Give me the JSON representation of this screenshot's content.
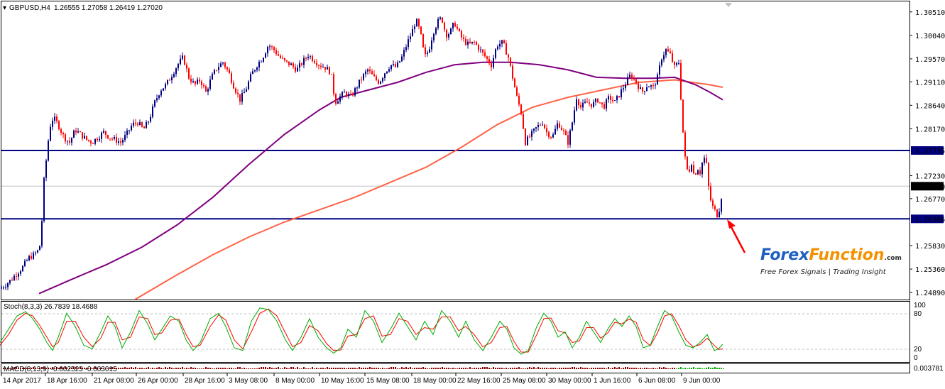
{
  "header": {
    "symbol": "GBPUSD,H4",
    "values": "1.26555 1.27058 1.26419 1.27020"
  },
  "indicators": {
    "stoch_label": "Stoch(8,3,3) 26.7839 18.4688",
    "macd_label": "MACD(8,13,9) -0.002523 -0.003015",
    "macd_axis_label": "0.003781",
    "stoch_levels": [
      "100",
      "80",
      "20",
      "0"
    ]
  },
  "watermark": {
    "brand_first": "Forex",
    "brand_second": "Function",
    "domain": ".com",
    "tagline": "Free Forex Signals | Trading Insight"
  },
  "colors": {
    "bg": "#ffffff",
    "bull": "#000080",
    "bear": "#ff0000",
    "ma_fast": "#800080",
    "ma_slow": "#ff6347",
    "hline": "#000080",
    "arrow": "#ff0000",
    "stoch_main": "#00aa00",
    "stoch_signal": "#ff0000",
    "brand_blue": "#1f5fbf",
    "brand_orange": "#f39200"
  },
  "chart_data": {
    "type": "candlestick",
    "ylim": [
      1.2475,
      1.3072
    ],
    "y_ticks": [
      "1.30510",
      "1.30040",
      "1.29570",
      "1.29110",
      "1.28640",
      "1.28170",
      "1.27230",
      "1.26770",
      "1.25830",
      "1.25360",
      "1.24890"
    ],
    "x_ticks": [
      "14 Apr 2017",
      "18 Apr 16:00",
      "21 Apr 08:00",
      "26 Apr 00:00",
      "28 Apr 16:00",
      "3 May 08:00",
      "8 May 00:00",
      "10 May 16:00",
      "15 May 08:00",
      "18 May 00:00",
      "22 May 16:00",
      "25 May 08:00",
      "30 May 00:00",
      "1 Jun 16:00",
      "6 Jun 08:00",
      "9 Jun 00:00"
    ],
    "price_boxes": [
      "1.27735",
      "1.27020",
      "1.26366"
    ],
    "horizontal_lines": [
      1.27735,
      1.26366
    ],
    "current_price": 1.2702,
    "close_path": [
      [
        0,
        1.2497
      ],
      [
        8,
        1.2505
      ],
      [
        16,
        1.2515
      ],
      [
        24,
        1.2528
      ],
      [
        32,
        1.254
      ],
      [
        40,
        1.2558
      ],
      [
        48,
        1.2565
      ],
      [
        55,
        1.2575
      ],
      [
        58,
        1.26
      ],
      [
        61,
        1.27
      ],
      [
        64,
        1.274
      ],
      [
        67,
        1.278
      ],
      [
        70,
        1.282
      ],
      [
        75,
        1.284
      ],
      [
        82,
        1.2825
      ],
      [
        90,
        1.28
      ],
      [
        98,
        1.279
      ],
      [
        106,
        1.2815
      ],
      [
        114,
        1.2805
      ],
      [
        122,
        1.2795
      ],
      [
        130,
        1.279
      ],
      [
        138,
        1.28
      ],
      [
        146,
        1.281
      ],
      [
        154,
        1.28
      ],
      [
        162,
        1.2795
      ],
      [
        170,
        1.279
      ],
      [
        178,
        1.2805
      ],
      [
        186,
        1.2825
      ],
      [
        194,
        1.283
      ],
      [
        202,
        1.2815
      ],
      [
        210,
        1.2835
      ],
      [
        218,
        1.287
      ],
      [
        226,
        1.2895
      ],
      [
        234,
        1.2905
      ],
      [
        242,
        1.2925
      ],
      [
        250,
        1.2945
      ],
      [
        258,
        1.296
      ],
      [
        266,
        1.292
      ],
      [
        274,
        1.2905
      ],
      [
        282,
        1.2915
      ],
      [
        290,
        1.289
      ],
      [
        298,
        1.292
      ],
      [
        306,
        1.294
      ],
      [
        314,
        1.295
      ],
      [
        322,
        1.293
      ],
      [
        330,
        1.29
      ],
      [
        338,
        1.2875
      ],
      [
        346,
        1.2895
      ],
      [
        354,
        1.2925
      ],
      [
        362,
        1.2945
      ],
      [
        370,
        1.296
      ],
      [
        378,
        1.2985
      ],
      [
        386,
        1.2975
      ],
      [
        394,
        1.296
      ],
      [
        402,
        1.295
      ],
      [
        410,
        1.2945
      ],
      [
        418,
        1.2935
      ],
      [
        426,
        1.295
      ],
      [
        434,
        1.2965
      ],
      [
        442,
        1.2955
      ],
      [
        450,
        1.2945
      ],
      [
        458,
        1.294
      ],
      [
        466,
        1.293
      ],
      [
        472,
        1.287
      ],
      [
        478,
        1.288
      ],
      [
        486,
        1.289
      ],
      [
        494,
        1.288
      ],
      [
        502,
        1.29
      ],
      [
        510,
        1.292
      ],
      [
        518,
        1.2935
      ],
      [
        526,
        1.292
      ],
      [
        534,
        1.291
      ],
      [
        542,
        1.293
      ],
      [
        550,
        1.2945
      ],
      [
        558,
        1.294
      ],
      [
        566,
        1.296
      ],
      [
        574,
        1.299
      ],
      [
        580,
        1.301
      ],
      [
        586,
        1.3035
      ],
      [
        592,
        1.301
      ],
      [
        598,
        1.296
      ],
      [
        604,
        1.2975
      ],
      [
        610,
        1.301
      ],
      [
        616,
        1.303
      ],
      [
        622,
        1.304
      ],
      [
        628,
        1.3005
      ],
      [
        634,
        1.301
      ],
      [
        640,
        1.303
      ],
      [
        646,
        1.301
      ],
      [
        652,
        1.2995
      ],
      [
        660,
        1.2985
      ],
      [
        668,
        1.299
      ],
      [
        676,
        1.2975
      ],
      [
        684,
        1.296
      ],
      [
        692,
        1.2945
      ],
      [
        700,
        1.2985
      ],
      [
        708,
        1.299
      ],
      [
        716,
        1.296
      ],
      [
        722,
        1.292
      ],
      [
        728,
        1.288
      ],
      [
        734,
        1.285
      ],
      [
        740,
        1.279
      ],
      [
        748,
        1.2805
      ],
      [
        756,
        1.282
      ],
      [
        764,
        1.283
      ],
      [
        770,
        1.281
      ],
      [
        778,
        1.28
      ],
      [
        786,
        1.283
      ],
      [
        794,
        1.281
      ],
      [
        800,
        1.279
      ],
      [
        806,
        1.283
      ],
      [
        812,
        1.288
      ],
      [
        818,
        1.286
      ],
      [
        826,
        1.287
      ],
      [
        834,
        1.2865
      ],
      [
        842,
        1.2875
      ],
      [
        850,
        1.286
      ],
      [
        858,
        1.288
      ],
      [
        866,
        1.287
      ],
      [
        874,
        1.289
      ],
      [
        880,
        1.2905
      ],
      [
        888,
        1.2925
      ],
      [
        896,
        1.291
      ],
      [
        904,
        1.289
      ],
      [
        912,
        1.2905
      ],
      [
        920,
        1.29
      ],
      [
        926,
        1.292
      ],
      [
        932,
        1.296
      ],
      [
        938,
        1.2975
      ],
      [
        944,
        1.2965
      ],
      [
        950,
        1.294
      ],
      [
        956,
        1.295
      ],
      [
        962,
        1.281
      ],
      [
        966,
        1.274
      ],
      [
        970,
        1.273
      ],
      [
        974,
        1.275
      ],
      [
        978,
        1.272
      ],
      [
        982,
        1.274
      ],
      [
        986,
        1.273
      ],
      [
        990,
        1.2755
      ],
      [
        994,
        1.276
      ],
      [
        998,
        1.27
      ],
      [
        1002,
        1.2665
      ],
      [
        1006,
        1.2655
      ],
      [
        1010,
        1.2645
      ],
      [
        1014,
        1.266
      ],
      [
        1018,
        1.2702
      ]
    ],
    "ma_fast": [
      [
        55,
        1.2487
      ],
      [
        100,
        1.2515
      ],
      [
        150,
        1.2545
      ],
      [
        200,
        1.258
      ],
      [
        250,
        1.2625
      ],
      [
        300,
        1.268
      ],
      [
        350,
        1.2745
      ],
      [
        400,
        1.2805
      ],
      [
        450,
        1.2855
      ],
      [
        480,
        1.288
      ],
      [
        520,
        1.2895
      ],
      [
        560,
        1.291
      ],
      [
        600,
        1.293
      ],
      [
        640,
        1.2945
      ],
      [
        680,
        1.295
      ],
      [
        720,
        1.295
      ],
      [
        760,
        1.2945
      ],
      [
        800,
        1.2935
      ],
      [
        840,
        1.292
      ],
      [
        880,
        1.2918
      ],
      [
        920,
        1.2918
      ],
      [
        950,
        1.292
      ],
      [
        980,
        1.2905
      ],
      [
        1000,
        1.289
      ],
      [
        1018,
        1.2875
      ]
    ],
    "ma_slow": [
      [
        190,
        1.2475
      ],
      [
        250,
        1.2525
      ],
      [
        300,
        1.2565
      ],
      [
        350,
        1.26
      ],
      [
        400,
        1.263
      ],
      [
        450,
        1.2655
      ],
      [
        500,
        1.268
      ],
      [
        550,
        1.271
      ],
      [
        600,
        1.274
      ],
      [
        650,
        1.278
      ],
      [
        700,
        1.2825
      ],
      [
        750,
        1.286
      ],
      [
        800,
        1.288
      ],
      [
        850,
        1.2895
      ],
      [
        900,
        1.291
      ],
      [
        950,
        1.2915
      ],
      [
        1000,
        1.2905
      ],
      [
        1018,
        1.29
      ]
    ],
    "stoch_main": [
      [
        0,
        30
      ],
      [
        12,
        55
      ],
      [
        24,
        80
      ],
      [
        36,
        88
      ],
      [
        46,
        75
      ],
      [
        56,
        55
      ],
      [
        66,
        30
      ],
      [
        74,
        15
      ],
      [
        82,
        40
      ],
      [
        94,
        85
      ],
      [
        106,
        60
      ],
      [
        118,
        25
      ],
      [
        130,
        18
      ],
      [
        142,
        50
      ],
      [
        152,
        80
      ],
      [
        162,
        60
      ],
      [
        172,
        20
      ],
      [
        184,
        50
      ],
      [
        196,
        90
      ],
      [
        208,
        65
      ],
      [
        218,
        35
      ],
      [
        228,
        55
      ],
      [
        240,
        80
      ],
      [
        252,
        70
      ],
      [
        262,
        35
      ],
      [
        272,
        15
      ],
      [
        282,
        30
      ],
      [
        296,
        75
      ],
      [
        308,
        85
      ],
      [
        318,
        60
      ],
      [
        330,
        20
      ],
      [
        342,
        15
      ],
      [
        354,
        70
      ],
      [
        366,
        95
      ],
      [
        378,
        92
      ],
      [
        390,
        70
      ],
      [
        402,
        35
      ],
      [
        412,
        15
      ],
      [
        424,
        40
      ],
      [
        436,
        75
      ],
      [
        448,
        40
      ],
      [
        460,
        20
      ],
      [
        470,
        10
      ],
      [
        480,
        20
      ],
      [
        490,
        55
      ],
      [
        502,
        40
      ],
      [
        514,
        90
      ],
      [
        526,
        70
      ],
      [
        538,
        30
      ],
      [
        550,
        55
      ],
      [
        562,
        85
      ],
      [
        574,
        60
      ],
      [
        586,
        35
      ],
      [
        598,
        70
      ],
      [
        610,
        45
      ],
      [
        622,
        90
      ],
      [
        634,
        70
      ],
      [
        646,
        40
      ],
      [
        656,
        70
      ],
      [
        668,
        35
      ],
      [
        680,
        15
      ],
      [
        692,
        40
      ],
      [
        704,
        70
      ],
      [
        714,
        55
      ],
      [
        724,
        20
      ],
      [
        734,
        8
      ],
      [
        744,
        15
      ],
      [
        756,
        60
      ],
      [
        766,
        85
      ],
      [
        776,
        70
      ],
      [
        786,
        40
      ],
      [
        796,
        50
      ],
      [
        806,
        20
      ],
      [
        816,
        40
      ],
      [
        826,
        70
      ],
      [
        836,
        50
      ],
      [
        846,
        30
      ],
      [
        856,
        55
      ],
      [
        866,
        75
      ],
      [
        876,
        60
      ],
      [
        886,
        80
      ],
      [
        896,
        60
      ],
      [
        906,
        20
      ],
      [
        916,
        25
      ],
      [
        926,
        60
      ],
      [
        936,
        90
      ],
      [
        946,
        80
      ],
      [
        956,
        50
      ],
      [
        966,
        25
      ],
      [
        976,
        20
      ],
      [
        986,
        30
      ],
      [
        996,
        45
      ],
      [
        1006,
        15
      ],
      [
        1012,
        18
      ],
      [
        1018,
        27
      ]
    ],
    "stoch_signal": [
      [
        0,
        25
      ],
      [
        12,
        45
      ],
      [
        24,
        72
      ],
      [
        36,
        85
      ],
      [
        46,
        80
      ],
      [
        56,
        62
      ],
      [
        66,
        40
      ],
      [
        74,
        22
      ],
      [
        82,
        30
      ],
      [
        94,
        70
      ],
      [
        106,
        70
      ],
      [
        118,
        40
      ],
      [
        130,
        22
      ],
      [
        142,
        38
      ],
      [
        152,
        68
      ],
      [
        162,
        68
      ],
      [
        172,
        35
      ],
      [
        184,
        40
      ],
      [
        196,
        78
      ],
      [
        208,
        75
      ],
      [
        218,
        45
      ],
      [
        228,
        48
      ],
      [
        240,
        72
      ],
      [
        252,
        74
      ],
      [
        262,
        45
      ],
      [
        272,
        22
      ],
      [
        282,
        25
      ],
      [
        296,
        60
      ],
      [
        308,
        82
      ],
      [
        318,
        72
      ],
      [
        330,
        35
      ],
      [
        342,
        18
      ],
      [
        354,
        50
      ],
      [
        366,
        85
      ],
      [
        378,
        93
      ],
      [
        390,
        80
      ],
      [
        402,
        48
      ],
      [
        412,
        22
      ],
      [
        424,
        30
      ],
      [
        436,
        62
      ],
      [
        448,
        52
      ],
      [
        460,
        28
      ],
      [
        470,
        15
      ],
      [
        480,
        16
      ],
      [
        490,
        42
      ],
      [
        502,
        45
      ],
      [
        514,
        75
      ],
      [
        526,
        80
      ],
      [
        538,
        42
      ],
      [
        550,
        45
      ],
      [
        562,
        75
      ],
      [
        574,
        70
      ],
      [
        586,
        45
      ],
      [
        598,
        58
      ],
      [
        610,
        55
      ],
      [
        622,
        78
      ],
      [
        634,
        78
      ],
      [
        646,
        52
      ],
      [
        656,
        60
      ],
      [
        668,
        45
      ],
      [
        680,
        22
      ],
      [
        692,
        30
      ],
      [
        704,
        58
      ],
      [
        714,
        60
      ],
      [
        724,
        32
      ],
      [
        734,
        12
      ],
      [
        744,
        12
      ],
      [
        756,
        45
      ],
      [
        766,
        75
      ],
      [
        776,
        76
      ],
      [
        786,
        52
      ],
      [
        796,
        48
      ],
      [
        806,
        30
      ],
      [
        816,
        33
      ],
      [
        826,
        58
      ],
      [
        836,
        58
      ],
      [
        846,
        38
      ],
      [
        856,
        48
      ],
      [
        866,
        68
      ],
      [
        876,
        65
      ],
      [
        886,
        74
      ],
      [
        896,
        68
      ],
      [
        906,
        35
      ],
      [
        916,
        24
      ],
      [
        926,
        48
      ],
      [
        936,
        80
      ],
      [
        946,
        84
      ],
      [
        956,
        62
      ],
      [
        966,
        35
      ],
      [
        976,
        22
      ],
      [
        986,
        26
      ],
      [
        996,
        38
      ],
      [
        1006,
        25
      ],
      [
        1012,
        17
      ],
      [
        1018,
        18
      ]
    ]
  }
}
